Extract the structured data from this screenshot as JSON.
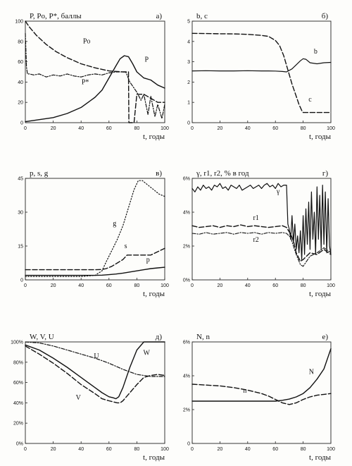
{
  "chart_data": [
    {
      "id": "a",
      "type": "line",
      "panel_label": "а)",
      "title": "P, Pо, P*, баллы",
      "xlabel": "t, годы",
      "xlim": [
        0,
        100
      ],
      "ylim": [
        0,
        100
      ],
      "xticks": [
        "0",
        "20",
        "40",
        "60",
        "80",
        "100"
      ],
      "yticks": [
        "0",
        "20",
        "40",
        "60",
        "80",
        "100"
      ],
      "series": [
        {
          "name": "Pо",
          "style": "dashed",
          "width": 1.4,
          "label_at": [
            44,
            78
          ],
          "x": [
            0,
            3,
            8,
            15,
            22,
            30,
            40,
            50,
            60,
            70,
            73,
            74,
            74.3,
            78,
            80,
            85,
            90,
            95,
            100
          ],
          "y": [
            100,
            94,
            86,
            77,
            70,
            64,
            58,
            54,
            51,
            50,
            50,
            50,
            0,
            0,
            28,
            28,
            24,
            20,
            20
          ]
        },
        {
          "name": "P*",
          "style": "dashdot",
          "width": 1.2,
          "label_at": [
            43,
            38
          ],
          "x": [
            0,
            0.8,
            1.5,
            3,
            6,
            10,
            15,
            20,
            25,
            30,
            35,
            40,
            45,
            50,
            55,
            60,
            65,
            70,
            72,
            75,
            80,
            83,
            85,
            88,
            90,
            93,
            95,
            98,
            100
          ],
          "y": [
            88,
            55,
            48,
            48,
            47,
            48,
            45,
            47,
            46,
            48,
            46,
            45,
            47,
            48,
            47,
            49,
            50,
            50,
            50,
            40,
            30,
            22,
            28,
            8,
            26,
            6,
            18,
            4,
            18
          ]
        },
        {
          "name": "P",
          "style": "solid",
          "width": 1.4,
          "label_at": [
            87,
            60
          ],
          "x": [
            0,
            10,
            20,
            30,
            40,
            50,
            55,
            60,
            65,
            68,
            71,
            74,
            77,
            80,
            85,
            90,
            95,
            100
          ],
          "y": [
            1,
            3,
            5,
            9,
            15,
            25,
            32,
            44,
            56,
            63,
            66,
            65,
            58,
            50,
            44,
            42,
            37,
            34
          ]
        }
      ]
    },
    {
      "id": "b",
      "type": "line",
      "panel_label": "б)",
      "title": "b, c",
      "xlabel": "t, годы",
      "xlim": [
        0,
        100
      ],
      "ylim": [
        0,
        5
      ],
      "xticks": [
        "0",
        "20",
        "40",
        "60",
        "80",
        "100"
      ],
      "yticks": [
        "0",
        "1",
        "2",
        "3",
        "4",
        "5"
      ],
      "series": [
        {
          "name": "b",
          "style": "solid",
          "width": 1.2,
          "label_at": [
            89,
            3.4
          ],
          "x": [
            0,
            10,
            20,
            30,
            40,
            50,
            55,
            60,
            65,
            68,
            72,
            75,
            78,
            80,
            82,
            85,
            90,
            95,
            100
          ],
          "y": [
            2.55,
            2.56,
            2.55,
            2.55,
            2.56,
            2.55,
            2.55,
            2.54,
            2.52,
            2.5,
            2.65,
            2.85,
            3.05,
            3.15,
            3.12,
            2.95,
            2.9,
            2.95,
            2.97
          ]
        },
        {
          "name": "c",
          "style": "dashed",
          "width": 1.4,
          "label_at": [
            85,
            1.05
          ],
          "x": [
            0,
            10,
            20,
            30,
            40,
            50,
            55,
            60,
            63,
            66,
            69,
            72,
            75,
            77,
            79,
            80,
            85,
            90,
            100
          ],
          "y": [
            4.4,
            4.39,
            4.38,
            4.37,
            4.35,
            4.3,
            4.25,
            4.05,
            3.8,
            3.3,
            2.6,
            1.9,
            1.3,
            0.9,
            0.6,
            0.5,
            0.5,
            0.5,
            0.5
          ]
        }
      ]
    },
    {
      "id": "v",
      "type": "line",
      "panel_label": "в)",
      "title": "p, s, g",
      "xlabel": "t, годы",
      "xlim": [
        0,
        100
      ],
      "ylim": [
        0,
        45
      ],
      "xticks": [
        "0",
        "20",
        "40",
        "60",
        "80",
        "100"
      ],
      "yticks": [
        "0",
        "15",
        "30",
        "45"
      ],
      "series": [
        {
          "name": "g",
          "style": "dotted",
          "width": 1.2,
          "label_at": [
            64,
            24
          ],
          "x": [
            0,
            10,
            20,
            30,
            40,
            50,
            55,
            58,
            62,
            66,
            70,
            74,
            78,
            81,
            84,
            88,
            92,
            96,
            100
          ],
          "y": [
            1.5,
            1.5,
            1.5,
            1.5,
            1.5,
            2,
            4,
            8,
            13,
            18,
            24,
            32,
            40,
            44,
            44,
            42,
            40,
            38,
            37
          ]
        },
        {
          "name": "s",
          "style": "dashed",
          "width": 1.4,
          "label_at": [
            72,
            14
          ],
          "x": [
            0,
            10,
            20,
            30,
            40,
            50,
            55,
            58,
            62,
            66,
            70,
            73,
            76,
            80,
            90,
            95,
            100
          ],
          "y": [
            4.5,
            4.5,
            4.5,
            4.5,
            4.5,
            4.5,
            4.6,
            5,
            6,
            7.5,
            9,
            11,
            11,
            11,
            11,
            12.5,
            14
          ]
        },
        {
          "name": "p",
          "style": "solid",
          "width": 1.4,
          "label_at": [
            88,
            8
          ],
          "x": [
            0,
            10,
            20,
            30,
            40,
            50,
            55,
            60,
            65,
            70,
            75,
            80,
            85,
            90,
            95,
            100
          ],
          "y": [
            2,
            2,
            2,
            2,
            2,
            2,
            2.1,
            2.3,
            2.6,
            3,
            3.5,
            4,
            4.5,
            5,
            5.3,
            5.6
          ]
        }
      ]
    },
    {
      "id": "g",
      "type": "line",
      "panel_label": "г)",
      "title": "γ, r1, r2, % в год",
      "xlabel": "t, годы",
      "xlim": [
        0,
        100
      ],
      "ylim": [
        0,
        6
      ],
      "xticks": [
        "0",
        "20",
        "40",
        "60",
        "80",
        "100"
      ],
      "yticks": [
        "0%",
        "2%",
        "4%",
        "6%"
      ],
      "series": [
        {
          "name": "γ",
          "style": "solid",
          "width": 1.2,
          "label_at": [
            62,
            5.1
          ],
          "x": [
            0,
            2,
            4,
            6,
            8,
            10,
            12,
            14,
            16,
            18,
            20,
            22,
            24,
            26,
            28,
            30,
            32,
            34,
            36,
            38,
            40,
            42,
            44,
            46,
            48,
            50,
            52,
            54,
            56,
            58,
            60,
            62,
            64,
            66,
            68,
            69,
            70,
            71,
            72,
            73,
            74,
            75,
            76,
            77,
            78,
            79,
            80,
            81,
            82,
            83,
            84,
            85,
            86,
            87,
            88,
            89,
            90,
            91,
            92,
            93,
            94,
            95,
            96,
            97,
            98,
            99,
            100
          ],
          "y": [
            5.4,
            5.2,
            5.5,
            5.3,
            5.6,
            5.4,
            5.5,
            5.3,
            5.6,
            5.5,
            5.7,
            5.4,
            5.5,
            5.3,
            5.6,
            5.5,
            5.4,
            5.6,
            5.3,
            5.4,
            5.5,
            5.6,
            5.4,
            5.5,
            5.6,
            5.4,
            5.6,
            5.7,
            5.5,
            5.6,
            5.4,
            5.7,
            5.5,
            5.6,
            5.6,
            3.3,
            3.0,
            2.4,
            3.8,
            2.2,
            3.3,
            1.8,
            2.6,
            1.6,
            2.9,
            1.2,
            3.8,
            1.5,
            4.2,
            2.1,
            4.6,
            1.8,
            5.2,
            2.4,
            4.0,
            1.5,
            5.5,
            2.4,
            5.0,
            1.8,
            5.6,
            2.1,
            5.2,
            1.6,
            4.8,
            2.0,
            1.5
          ]
        },
        {
          "name": "r1",
          "style": "dashed",
          "width": 1.4,
          "label_at": [
            46,
            3.55
          ],
          "x": [
            0,
            5,
            10,
            15,
            20,
            25,
            30,
            35,
            40,
            45,
            50,
            55,
            60,
            65,
            68,
            71,
            73,
            75,
            78,
            80,
            85,
            90,
            95,
            100
          ],
          "y": [
            3.2,
            3.1,
            3.15,
            3.2,
            3.1,
            3.2,
            3.15,
            3.25,
            3.15,
            3.2,
            3.15,
            3.1,
            3.15,
            3.2,
            3.1,
            2.7,
            2.3,
            1.6,
            1.1,
            1.2,
            1.6,
            1.5,
            1.8,
            1.5
          ]
        },
        {
          "name": "r2",
          "style": "dashdot",
          "width": 1.1,
          "label_at": [
            46,
            2.25
          ],
          "x": [
            0,
            5,
            10,
            15,
            20,
            25,
            30,
            35,
            40,
            45,
            50,
            55,
            60,
            65,
            68,
            71,
            73,
            75,
            78,
            80,
            85,
            90,
            95,
            100
          ],
          "y": [
            2.75,
            2.7,
            2.8,
            2.7,
            2.75,
            2.8,
            2.7,
            2.8,
            2.75,
            2.8,
            2.7,
            2.8,
            2.75,
            2.8,
            2.75,
            2.5,
            2.0,
            1.5,
            0.9,
            0.8,
            1.4,
            1.6,
            1.9,
            1.6
          ]
        }
      ]
    },
    {
      "id": "d",
      "type": "line",
      "panel_label": "д)",
      "title": "W, V, U",
      "xlabel": "t, годы",
      "xlim": [
        0,
        100
      ],
      "ylim": [
        0,
        100
      ],
      "xticks": [
        "0",
        "20",
        "40",
        "60",
        "80",
        "100"
      ],
      "yticks": [
        "0%",
        "20%",
        "40%",
        "60%",
        "80%",
        "100%"
      ],
      "series": [
        {
          "name": "U",
          "style": "dashdot",
          "width": 1.2,
          "label_at": [
            51,
            84
          ],
          "x": [
            0,
            10,
            20,
            30,
            40,
            50,
            60,
            70,
            80,
            90,
            100
          ],
          "y": [
            100,
            99,
            96,
            92,
            88,
            84,
            79,
            73,
            68,
            66,
            66
          ]
        },
        {
          "name": "W",
          "style": "solid",
          "width": 1.4,
          "label_at": [
            87,
            87
          ],
          "x": [
            0,
            10,
            20,
            30,
            40,
            50,
            55,
            60,
            63,
            65,
            67,
            70,
            75,
            80,
            85,
            90,
            100
          ],
          "y": [
            97,
            92,
            84,
            75,
            65,
            55,
            50,
            46,
            45,
            44,
            46,
            55,
            75,
            92,
            100,
            100,
            100
          ]
        },
        {
          "name": "V",
          "style": "dashed",
          "width": 1.4,
          "label_at": [
            38,
            43
          ],
          "x": [
            0,
            10,
            20,
            30,
            40,
            50,
            55,
            60,
            63,
            66,
            68,
            70,
            75,
            80,
            85,
            90,
            95,
            100
          ],
          "y": [
            96,
            88,
            79,
            69,
            58,
            49,
            44,
            42,
            41,
            40,
            40,
            42,
            50,
            58,
            65,
            67,
            68,
            67
          ]
        }
      ]
    },
    {
      "id": "e",
      "type": "line",
      "panel_label": "е)",
      "title": "N, n",
      "xlabel": "t, годы",
      "xlim": [
        0,
        100
      ],
      "ylim": [
        0,
        6
      ],
      "xticks": [
        "0",
        "20",
        "40",
        "60",
        "80",
        "100"
      ],
      "yticks": [
        "0",
        "2%",
        "4%",
        "6%"
      ],
      "series": [
        {
          "name": "n",
          "style": "dashed",
          "width": 1.4,
          "label_at": [
            38,
            3.0
          ],
          "x": [
            0,
            10,
            20,
            30,
            40,
            50,
            55,
            60,
            65,
            70,
            75,
            80,
            85,
            90,
            95,
            100
          ],
          "y": [
            3.5,
            3.45,
            3.4,
            3.3,
            3.15,
            2.95,
            2.8,
            2.6,
            2.4,
            2.3,
            2.4,
            2.6,
            2.75,
            2.85,
            2.9,
            2.95
          ]
        },
        {
          "name": "N",
          "style": "solid",
          "width": 1.4,
          "label_at": [
            86,
            4.1
          ],
          "x": [
            0,
            10,
            20,
            30,
            40,
            50,
            60,
            65,
            70,
            75,
            80,
            85,
            90,
            95,
            100
          ],
          "y": [
            2.5,
            2.5,
            2.5,
            2.5,
            2.5,
            2.5,
            2.5,
            2.55,
            2.62,
            2.75,
            2.95,
            3.3,
            3.8,
            4.4,
            5.6
          ]
        }
      ]
    }
  ]
}
